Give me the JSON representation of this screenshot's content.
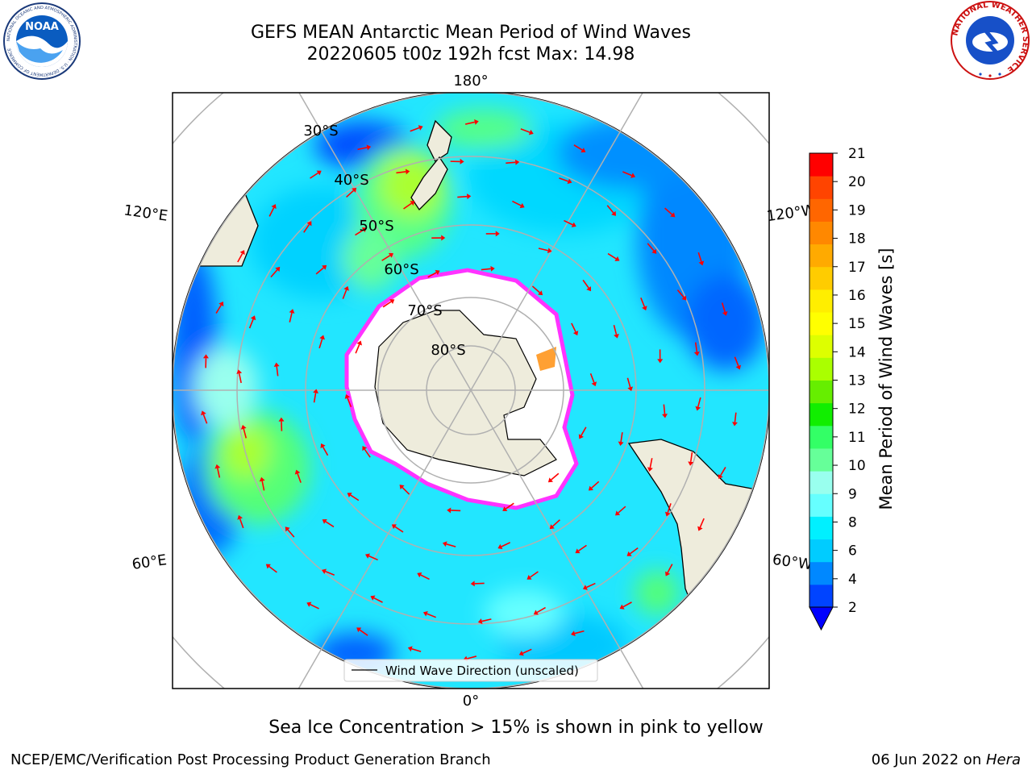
{
  "title": {
    "line1": "GEFS MEAN Antarctic Mean Period of Wind Waves",
    "line2": "20220605 t00z 192h fcst   Max: 14.98"
  },
  "map": {
    "projection": "south-polar-stereographic",
    "meridian_labels": {
      "top": "180°",
      "bottom": "0°",
      "upper_left": "120°E",
      "lower_left": "60°E",
      "upper_right": "120°W",
      "lower_right": "60°W"
    },
    "latitude_labels": [
      "30°S",
      "40°S",
      "50°S",
      "60°S",
      "70°S",
      "80°S"
    ],
    "legend": "Wind Wave Direction (unscaled)",
    "colors": {
      "land": "#eeecdc",
      "ice": "#ffffff",
      "ice_edge": "#ff33ff",
      "arrow": "#ff0000"
    }
  },
  "colorbar": {
    "label": "Mean Period of Wind Waves [s]",
    "ticks": [
      "2",
      "4",
      "6",
      "8",
      "9",
      "10",
      "11",
      "12",
      "13",
      "14",
      "15",
      "16",
      "17",
      "18",
      "19",
      "20",
      "21"
    ],
    "colors": [
      "#0044ff",
      "#0088ff",
      "#00ccff",
      "#00f0ff",
      "#66ffff",
      "#99ffee",
      "#66ff99",
      "#33ff66",
      "#11ee00",
      "#66ee00",
      "#aaff00",
      "#ddff00",
      "#ffff00",
      "#ffee00",
      "#ffcc00",
      "#ffaa00",
      "#ff8800",
      "#ff6600",
      "#ff4400",
      "#ff0000"
    ],
    "extend_color": "#0000ff"
  },
  "caption": "Sea Ice Concentration > 15% is shown in pink to yellow",
  "footer": {
    "left": "NCEP/EMC/Verification Post Processing Product Generation Branch",
    "right_date": "06 Jun 2022 on ",
    "right_host": "Hera"
  },
  "logos": {
    "noaa": {
      "text": "NOAA",
      "ring_text": "NATIONAL OCEANIC AND ATMOSPHERIC ADMINISTRATION · U.S. DEPARTMENT OF COMMERCE"
    },
    "nws": {
      "ring_text": "NATIONAL WEATHER SERVICE"
    }
  }
}
